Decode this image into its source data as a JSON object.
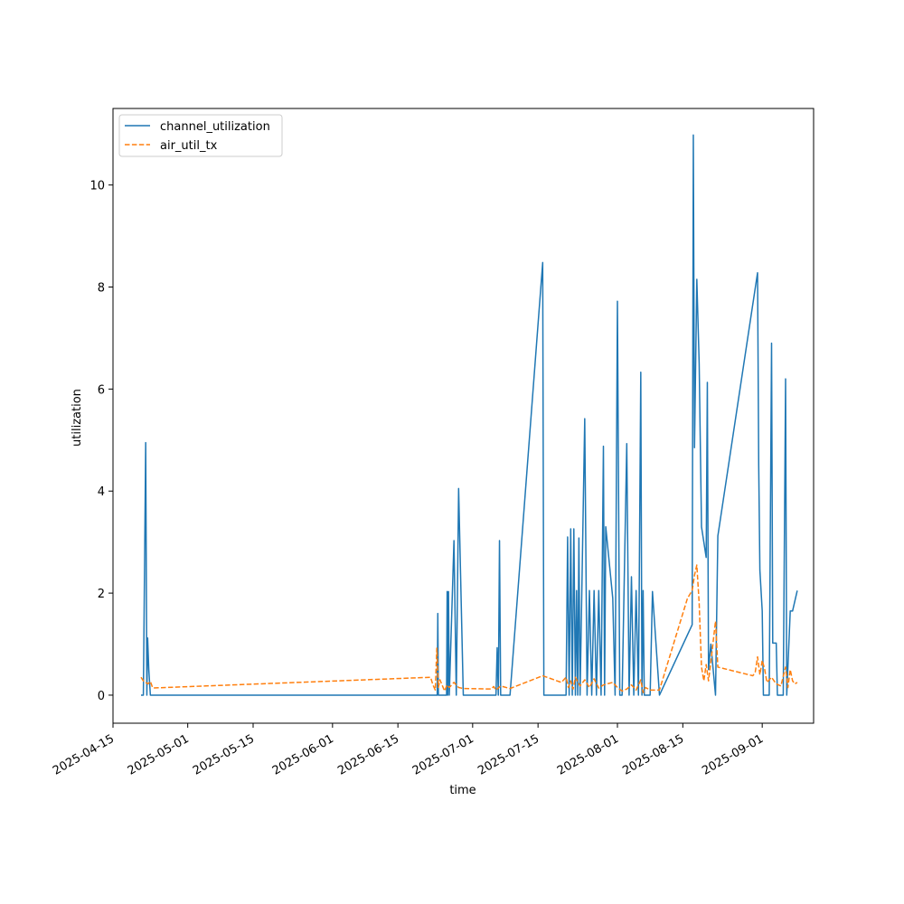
{
  "chart_data": {
    "type": "line",
    "title": "",
    "xlabel": "time",
    "ylabel": "utilization",
    "x_type": "date",
    "xlim": [
      "2025-04-15",
      "2025-09-12"
    ],
    "ylim": [
      -0.55,
      11.5
    ],
    "x_ticks": [
      "2025-04-15",
      "2025-05-01",
      "2025-05-15",
      "2025-06-01",
      "2025-06-15",
      "2025-07-01",
      "2025-07-15",
      "2025-08-01",
      "2025-08-15",
      "2025-09-01"
    ],
    "y_ticks": [
      0,
      2,
      4,
      6,
      8,
      10
    ],
    "grid": false,
    "legend_position": "upper-left",
    "colors": {
      "channel_utilization": "#1f77b4",
      "air_util_tx": "#ff7f0e"
    },
    "series": [
      {
        "name": "channel_utilization",
        "style": "solid",
        "points": [
          [
            "2025-04-21T00:00",
            0
          ],
          [
            "2025-04-21T12:00",
            0
          ],
          [
            "2025-04-22T00:00",
            4.95
          ],
          [
            "2025-04-22T06:00",
            0
          ],
          [
            "2025-04-22T10:00",
            1.12
          ],
          [
            "2025-04-22T16:00",
            0.5
          ],
          [
            "2025-04-23T00:00",
            0
          ],
          [
            "2025-06-23T10:00",
            0
          ],
          [
            "2025-06-23T13:00",
            1.6
          ],
          [
            "2025-06-23T16:00",
            0
          ],
          [
            "2025-06-25T10:00",
            0
          ],
          [
            "2025-06-25T13:00",
            2.03
          ],
          [
            "2025-06-25T16:00",
            0
          ],
          [
            "2025-06-25T20:00",
            2.03
          ],
          [
            "2025-06-26T00:00",
            0
          ],
          [
            "2025-06-27T00:00",
            3.03
          ],
          [
            "2025-06-27T12:00",
            0
          ],
          [
            "2025-06-28T00:00",
            4.05
          ],
          [
            "2025-06-29T00:00",
            0
          ],
          [
            "2025-07-06T00:00",
            0
          ],
          [
            "2025-07-06T06:00",
            0.93
          ],
          [
            "2025-07-06T12:00",
            0
          ],
          [
            "2025-07-06T18:00",
            3.03
          ],
          [
            "2025-07-07T00:00",
            0
          ],
          [
            "2025-07-09T00:00",
            0
          ],
          [
            "2025-07-16T00:00",
            8.48
          ],
          [
            "2025-07-16T06:00",
            0
          ],
          [
            "2025-07-21T00:00",
            0
          ],
          [
            "2025-07-21T08:00",
            3.1
          ],
          [
            "2025-07-21T16:00",
            0
          ],
          [
            "2025-07-22T00:00",
            3.26
          ],
          [
            "2025-07-22T08:00",
            0
          ],
          [
            "2025-07-22T16:00",
            3.26
          ],
          [
            "2025-07-23T00:00",
            0
          ],
          [
            "2025-07-23T06:00",
            2.05
          ],
          [
            "2025-07-23T12:00",
            0
          ],
          [
            "2025-07-23T18:00",
            3.08
          ],
          [
            "2025-07-24T00:00",
            0
          ],
          [
            "2025-07-25T00:00",
            5.42
          ],
          [
            "2025-07-25T12:00",
            0
          ],
          [
            "2025-07-26T00:00",
            2.05
          ],
          [
            "2025-07-26T12:00",
            0
          ],
          [
            "2025-07-27T00:00",
            2.05
          ],
          [
            "2025-07-27T12:00",
            0
          ],
          [
            "2025-07-28T00:00",
            2.05
          ],
          [
            "2025-07-28T12:00",
            0
          ],
          [
            "2025-07-29T00:00",
            4.88
          ],
          [
            "2025-07-29T06:00",
            0
          ],
          [
            "2025-07-29T12:00",
            3.3
          ],
          [
            "2025-07-31T00:00",
            1.9
          ],
          [
            "2025-07-31T12:00",
            0
          ],
          [
            "2025-08-01T00:00",
            7.72
          ],
          [
            "2025-08-01T12:00",
            0
          ],
          [
            "2025-08-02T00:00",
            0
          ],
          [
            "2025-08-03T00:00",
            4.93
          ],
          [
            "2025-08-03T12:00",
            0
          ],
          [
            "2025-08-04T00:00",
            2.32
          ],
          [
            "2025-08-04T12:00",
            0
          ],
          [
            "2025-08-05T00:00",
            2.05
          ],
          [
            "2025-08-05T12:00",
            0
          ],
          [
            "2025-08-06T00:00",
            6.33
          ],
          [
            "2025-08-06T06:00",
            0
          ],
          [
            "2025-08-06T12:00",
            2.05
          ],
          [
            "2025-08-06T18:00",
            0
          ],
          [
            "2025-08-08T00:00",
            0
          ],
          [
            "2025-08-08T12:00",
            2.03
          ],
          [
            "2025-08-10T00:00",
            0
          ],
          [
            "2025-08-17T00:00",
            1.38
          ],
          [
            "2025-08-17T06:00",
            10.98
          ],
          [
            "2025-08-17T12:00",
            4.85
          ],
          [
            "2025-08-18T00:00",
            8.15
          ],
          [
            "2025-08-18T12:00",
            6.5
          ],
          [
            "2025-08-19T00:00",
            3.3
          ],
          [
            "2025-08-20T00:00",
            2.7
          ],
          [
            "2025-08-20T06:00",
            6.13
          ],
          [
            "2025-08-20T12:00",
            0.5
          ],
          [
            "2025-08-21T00:00",
            1.0
          ],
          [
            "2025-08-22T00:00",
            0
          ],
          [
            "2025-08-22T12:00",
            3.12
          ],
          [
            "2025-08-31T00:00",
            8.28
          ],
          [
            "2025-08-31T06:00",
            4.5
          ],
          [
            "2025-08-31T12:00",
            2.45
          ],
          [
            "2025-09-01T00:00",
            1.65
          ],
          [
            "2025-09-01T06:00",
            0
          ],
          [
            "2025-09-02T12:00",
            0
          ],
          [
            "2025-09-03T00:00",
            6.9
          ],
          [
            "2025-09-03T06:00",
            1.02
          ],
          [
            "2025-09-04T00:00",
            1.02
          ],
          [
            "2025-09-04T06:00",
            0
          ],
          [
            "2025-09-05T12:00",
            0
          ],
          [
            "2025-09-06T00:00",
            6.2
          ],
          [
            "2025-09-06T06:00",
            0
          ],
          [
            "2025-09-07T00:00",
            1.65
          ],
          [
            "2025-09-07T12:00",
            1.65
          ],
          [
            "2025-09-08T12:00",
            2.05
          ]
        ]
      },
      {
        "name": "air_util_tx",
        "style": "dashed",
        "points": [
          [
            "2025-04-21T00:00",
            0.35
          ],
          [
            "2025-04-21T12:00",
            0.28
          ],
          [
            "2025-04-22T00:00",
            0.25
          ],
          [
            "2025-04-22T12:00",
            0.22
          ],
          [
            "2025-04-23T00:00",
            0.27
          ],
          [
            "2025-04-23T12:00",
            0.14
          ],
          [
            "2025-06-22T00:00",
            0.35
          ],
          [
            "2025-06-22T12:00",
            0.2
          ],
          [
            "2025-06-23T00:00",
            0.1
          ],
          [
            "2025-06-23T08:00",
            0.92
          ],
          [
            "2025-06-23T16:00",
            0.15
          ],
          [
            "2025-06-24T00:00",
            0.3
          ],
          [
            "2025-06-25T00:00",
            0.08
          ],
          [
            "2025-06-25T12:00",
            0.2
          ],
          [
            "2025-06-26T00:00",
            0.15
          ],
          [
            "2025-06-27T00:00",
            0.25
          ],
          [
            "2025-06-28T00:00",
            0.15
          ],
          [
            "2025-06-29T00:00",
            0.13
          ],
          [
            "2025-07-05T00:00",
            0.12
          ],
          [
            "2025-07-05T12:00",
            0.17
          ],
          [
            "2025-07-06T00:00",
            0.1
          ],
          [
            "2025-07-07T00:00",
            0.18
          ],
          [
            "2025-07-09T00:00",
            0.13
          ],
          [
            "2025-07-16T00:00",
            0.38
          ],
          [
            "2025-07-20T00:00",
            0.25
          ],
          [
            "2025-07-21T00:00",
            0.35
          ],
          [
            "2025-07-21T12:00",
            0.15
          ],
          [
            "2025-07-22T00:00",
            0.28
          ],
          [
            "2025-07-22T12:00",
            0.12
          ],
          [
            "2025-07-23T00:00",
            0.35
          ],
          [
            "2025-07-24T00:00",
            0.18
          ],
          [
            "2025-07-25T00:00",
            0.3
          ],
          [
            "2025-07-26T00:00",
            0.15
          ],
          [
            "2025-07-27T00:00",
            0.32
          ],
          [
            "2025-07-28T00:00",
            0.14
          ],
          [
            "2025-07-29T00:00",
            0.2
          ],
          [
            "2025-07-31T00:00",
            0.25
          ],
          [
            "2025-08-01T00:00",
            0.15
          ],
          [
            "2025-08-02T00:00",
            0.08
          ],
          [
            "2025-08-03T00:00",
            0.12
          ],
          [
            "2025-08-04T00:00",
            0.2
          ],
          [
            "2025-08-05T00:00",
            0.1
          ],
          [
            "2025-08-06T00:00",
            0.3
          ],
          [
            "2025-08-06T12:00",
            0.05
          ],
          [
            "2025-08-07T00:00",
            0.15
          ],
          [
            "2025-08-08T00:00",
            0.1
          ],
          [
            "2025-08-10T00:00",
            0.1
          ],
          [
            "2025-08-16T00:00",
            1.9
          ],
          [
            "2025-08-17T00:00",
            2.05
          ],
          [
            "2025-08-17T12:00",
            2.35
          ],
          [
            "2025-08-18T00:00",
            2.55
          ],
          [
            "2025-08-18T12:00",
            1.8
          ],
          [
            "2025-08-19T00:00",
            0.55
          ],
          [
            "2025-08-19T12:00",
            0.28
          ],
          [
            "2025-08-20T00:00",
            0.6
          ],
          [
            "2025-08-20T12:00",
            0.28
          ],
          [
            "2025-08-21T00:00",
            0.65
          ],
          [
            "2025-08-22T00:00",
            1.45
          ],
          [
            "2025-08-22T12:00",
            0.55
          ],
          [
            "2025-08-30T00:00",
            0.38
          ],
          [
            "2025-08-30T12:00",
            0.45
          ],
          [
            "2025-08-31T00:00",
            0.75
          ],
          [
            "2025-08-31T12:00",
            0.4
          ],
          [
            "2025-09-01T00:00",
            0.68
          ],
          [
            "2025-09-01T12:00",
            0.52
          ],
          [
            "2025-09-02T00:00",
            0.25
          ],
          [
            "2025-09-03T00:00",
            0.35
          ],
          [
            "2025-09-04T00:00",
            0.22
          ],
          [
            "2025-09-05T00:00",
            0.18
          ],
          [
            "2025-09-06T00:00",
            0.55
          ],
          [
            "2025-09-06T12:00",
            0.15
          ],
          [
            "2025-09-07T00:00",
            0.5
          ],
          [
            "2025-09-07T12:00",
            0.28
          ],
          [
            "2025-09-08T00:00",
            0.22
          ],
          [
            "2025-09-08T12:00",
            0.25
          ]
        ]
      }
    ]
  }
}
